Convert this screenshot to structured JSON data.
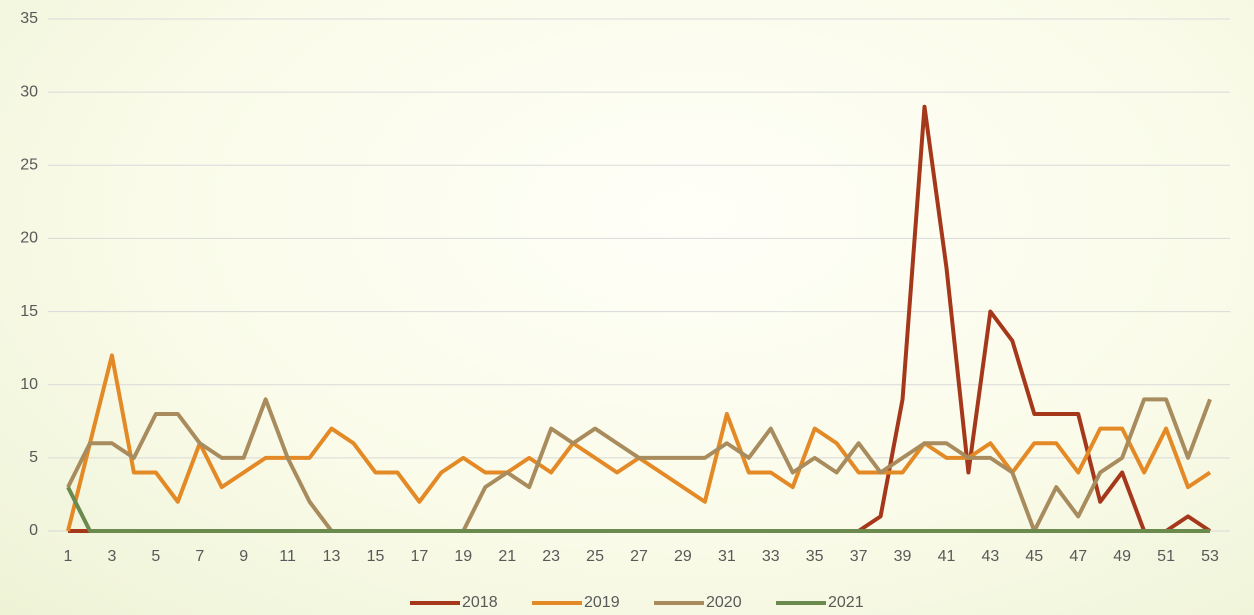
{
  "chart_data": {
    "type": "line",
    "categories": [
      1,
      null,
      3,
      null,
      5,
      null,
      7,
      null,
      9,
      null,
      11,
      null,
      13,
      null,
      15,
      null,
      17,
      null,
      19,
      null,
      21,
      null,
      23,
      null,
      25,
      null,
      27,
      null,
      29,
      null,
      31,
      null,
      33,
      null,
      35,
      null,
      37,
      null,
      39,
      null,
      41,
      null,
      43,
      null,
      45,
      null,
      47,
      null,
      49,
      null,
      51,
      null,
      53
    ],
    "series": [
      {
        "name": "2018",
        "color": "#a5371b",
        "values": [
          0,
          0,
          0,
          0,
          0,
          0,
          0,
          0,
          0,
          0,
          0,
          0,
          0,
          0,
          0,
          0,
          0,
          0,
          0,
          0,
          0,
          0,
          0,
          0,
          0,
          0,
          0,
          0,
          0,
          0,
          0,
          0,
          0,
          0,
          0,
          0,
          0,
          1,
          9,
          29,
          18,
          4,
          15,
          13,
          8,
          8,
          8,
          2,
          4,
          0,
          0,
          1,
          0
        ]
      },
      {
        "name": "2019",
        "color": "#e38a26",
        "values": [
          0,
          6,
          12,
          4,
          4,
          2,
          6,
          3,
          4,
          5,
          5,
          5,
          7,
          6,
          4,
          4,
          2,
          4,
          5,
          4,
          4,
          5,
          4,
          6,
          5,
          4,
          5,
          4,
          3,
          2,
          8,
          4,
          4,
          3,
          7,
          6,
          4,
          4,
          4,
          6,
          5,
          5,
          6,
          4,
          6,
          6,
          4,
          7,
          7,
          4,
          7,
          3,
          4
        ]
      },
      {
        "name": "2020",
        "color": "#a88c5e",
        "values": [
          3,
          6,
          6,
          5,
          8,
          8,
          6,
          5,
          5,
          9,
          5,
          2,
          0,
          0,
          0,
          0,
          0,
          0,
          0,
          3,
          4,
          3,
          7,
          6,
          7,
          6,
          5,
          5,
          5,
          5,
          6,
          5,
          7,
          4,
          5,
          4,
          6,
          4,
          5,
          6,
          6,
          5,
          5,
          4,
          0,
          3,
          1,
          4,
          5,
          9,
          9,
          5,
          9
        ]
      },
      {
        "name": "2021",
        "color": "#6b8a4e",
        "values": [
          3,
          0,
          0,
          0,
          0,
          0,
          0,
          0,
          0,
          0,
          0,
          0,
          0,
          0,
          0,
          0,
          0,
          0,
          0,
          0,
          0,
          0,
          0,
          0,
          0,
          0,
          0,
          0,
          0,
          0,
          0,
          0,
          0,
          0,
          0,
          0,
          0,
          0,
          0,
          0,
          0,
          0,
          0,
          0,
          0,
          0,
          0,
          0,
          0,
          0,
          0,
          0,
          0
        ]
      }
    ],
    "ylim": [
      0,
      35
    ],
    "yticks": [
      0,
      5,
      10,
      15,
      20,
      25,
      30,
      35
    ],
    "grid": true,
    "legend": "bottom"
  }
}
